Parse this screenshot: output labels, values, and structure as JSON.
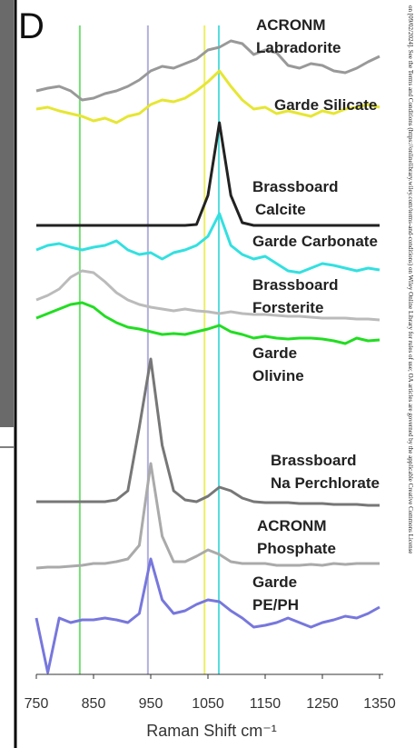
{
  "chart_data": {
    "type": "line",
    "panel_label": "D",
    "xlabel": "Raman Shift cm⁻¹",
    "side_note": "on [09/02/2024]. See the Terms and Conditions (https://onlinelibrary.wiley.com/terms-and-conditions) on Wiley Online Library for rules of use; OA articles are governed by the applicable Creative Commons License",
    "x": [
      750,
      770,
      790,
      810,
      830,
      850,
      870,
      890,
      910,
      930,
      950,
      970,
      990,
      1010,
      1030,
      1050,
      1070,
      1090,
      1110,
      1130,
      1150,
      1170,
      1190,
      1210,
      1230,
      1250,
      1270,
      1290,
      1310,
      1330,
      1350
    ],
    "xlim": [
      750,
      1350
    ],
    "xticks": [
      750,
      850,
      950,
      1050,
      1150,
      1250,
      1350
    ],
    "ylim": [
      0,
      742
    ],
    "reference_lines": [
      {
        "x": 826,
        "color": "#77dd77"
      },
      {
        "x": 945,
        "color": "#b0b0dd"
      },
      {
        "x": 1044,
        "color": "#eeee66"
      },
      {
        "x": 1069,
        "color": "#55dddd"
      }
    ],
    "series": [
      {
        "name": "ACRONM\nLabradorite",
        "color": "#999999",
        "values": [
          642,
          645,
          647,
          642,
          632,
          634,
          639,
          642,
          647,
          654,
          664,
          669,
          667,
          672,
          677,
          687,
          690,
          697,
          694,
          682,
          687,
          684,
          670,
          667,
          672,
          670,
          664,
          662,
          667,
          674,
          680
        ]
      },
      {
        "name": "Garde Silicate",
        "color": "#e6e633",
        "values": [
          622,
          624,
          620,
          617,
          614,
          609,
          612,
          607,
          614,
          617,
          627,
          632,
          630,
          634,
          642,
          652,
          664,
          647,
          632,
          622,
          624,
          617,
          620,
          617,
          614,
          620,
          617,
          622,
          624,
          627,
          624
        ]
      },
      {
        "name": "Brassboard\nCalcite",
        "color": "#222222",
        "values": [
          494,
          494,
          494,
          494,
          494,
          494,
          494,
          494,
          494,
          494,
          494,
          494,
          494,
          494,
          495,
          527,
          607,
          527,
          497,
          494,
          494,
          494,
          494,
          494,
          494,
          494,
          494,
          494,
          494,
          494,
          494
        ]
      },
      {
        "name": "Garde Carbonate",
        "color": "#33e0e0",
        "values": [
          467,
          472,
          474,
          470,
          467,
          470,
          472,
          477,
          467,
          462,
          464,
          457,
          464,
          467,
          472,
          482,
          507,
          472,
          462,
          457,
          460,
          452,
          444,
          442,
          447,
          452,
          450,
          447,
          444,
          447,
          445
        ]
      },
      {
        "name": "Brassboard\nForsterite",
        "color": "#bbbbbb",
        "values": [
          412,
          417,
          424,
          437,
          444,
          442,
          432,
          420,
          412,
          407,
          404,
          402,
          400,
          402,
          400,
          399,
          397,
          399,
          397,
          396,
          396,
          395,
          394,
          394,
          393,
          392,
          392,
          392,
          391,
          391,
          390
        ]
      },
      {
        "name": "Garde\nOlivine",
        "color": "#22dd22",
        "values": [
          392,
          397,
          402,
          407,
          409,
          404,
          394,
          387,
          382,
          380,
          377,
          374,
          375,
          374,
          377,
          380,
          384,
          377,
          374,
          370,
          372,
          370,
          369,
          370,
          370,
          369,
          367,
          364,
          370,
          367,
          368
        ]
      },
      {
        "name": "Brassboard\nNa Perchlorate",
        "color": "#777777",
        "values": [
          190,
          190,
          190,
          190,
          190,
          190,
          190,
          192,
          202,
          272,
          347,
          252,
          202,
          192,
          190,
          196,
          206,
          202,
          194,
          190,
          189,
          189,
          189,
          188,
          188,
          188,
          187,
          187,
          187,
          186,
          186
        ]
      },
      {
        "name": "ACRONM\nPhosphate",
        "color": "#aaaaaa",
        "values": [
          117,
          118,
          118,
          119,
          120,
          122,
          122,
          124,
          127,
          142,
          232,
          152,
          124,
          124,
          130,
          137,
          132,
          124,
          122,
          122,
          122,
          120,
          120,
          120,
          121,
          120,
          122,
          121,
          122,
          122,
          122
        ]
      },
      {
        "name": "Garde\nPE/PH",
        "color": "#7777dd",
        "values": [
          62,
          2,
          62,
          57,
          60,
          60,
          62,
          60,
          57,
          67,
          127,
          82,
          67,
          70,
          77,
          82,
          80,
          70,
          62,
          52,
          54,
          57,
          62,
          57,
          52,
          57,
          60,
          64,
          62,
          67,
          74
        ]
      }
    ]
  }
}
